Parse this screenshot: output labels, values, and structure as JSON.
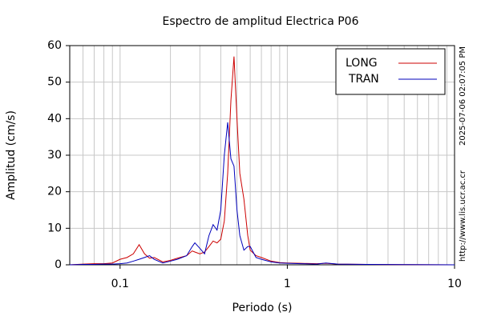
{
  "chart_data": {
    "type": "line",
    "title": "Espectro de amplitud Electrica P06",
    "x_label": "Periodo (s)",
    "y_label": "Amplitud (cm/s)",
    "annotations": [
      "2025-07-06 02:07:05 PM",
      "http://www.lis.ucr.ac.cr"
    ],
    "x": [
      0.05,
      0.06,
      0.07,
      0.08,
      0.09,
      0.1,
      0.11,
      0.12,
      0.13,
      0.14,
      0.15,
      0.16,
      0.18,
      0.2,
      0.22,
      0.25,
      0.27,
      0.28,
      0.3,
      0.32,
      0.34,
      0.36,
      0.38,
      0.4,
      0.42,
      0.44,
      0.46,
      0.48,
      0.5,
      0.52,
      0.55,
      0.58,
      0.6,
      0.65,
      0.7,
      0.8,
      0.9,
      1,
      1.2,
      1.5,
      1.7,
      2,
      3,
      5,
      10
    ],
    "series": [
      {
        "name": "LONG",
        "color": "#cc0000",
        "values": [
          0,
          0.2,
          0.3,
          0.3,
          0.5,
          1.5,
          2,
          3,
          5.5,
          3,
          1.8,
          2,
          0.8,
          1.2,
          1.8,
          2.5,
          3.8,
          3.5,
          3,
          3.5,
          5,
          6.5,
          6,
          7,
          12,
          25,
          45,
          57,
          40,
          25,
          18,
          8,
          4,
          2.5,
          2,
          1,
          0.6,
          0.5,
          0.4,
          0.3,
          0.4,
          0.2,
          0.1,
          0.05,
          0
        ]
      },
      {
        "name": "TRAN",
        "color": "#0000bb",
        "values": [
          0,
          0.1,
          0.1,
          0.2,
          0.2,
          0.3,
          0.5,
          1,
          1.5,
          2,
          2.5,
          1.5,
          0.5,
          1,
          1.5,
          2.5,
          5,
          6,
          4.5,
          3,
          8,
          11,
          9.5,
          15,
          30,
          39,
          29,
          27,
          15,
          8,
          4,
          5,
          5,
          2,
          1.5,
          0.8,
          0.5,
          0.4,
          0.3,
          0.2,
          0.5,
          0.2,
          0.1,
          0.05,
          0
        ]
      }
    ],
    "xlim": [
      0.05,
      10
    ],
    "xticks": [
      0.1,
      1,
      10
    ],
    "xminorticks": [
      0.05,
      0.06,
      0.07,
      0.08,
      0.09,
      0.2,
      0.3,
      0.4,
      0.5,
      0.6,
      0.7,
      0.8,
      0.9,
      2,
      3,
      4,
      5,
      6,
      7,
      8,
      9
    ],
    "x_log": true,
    "ylim": [
      0,
      60
    ],
    "yticks": [
      0,
      10,
      20,
      30,
      40,
      50,
      60
    ],
    "grid": true,
    "legend": "upper right"
  }
}
